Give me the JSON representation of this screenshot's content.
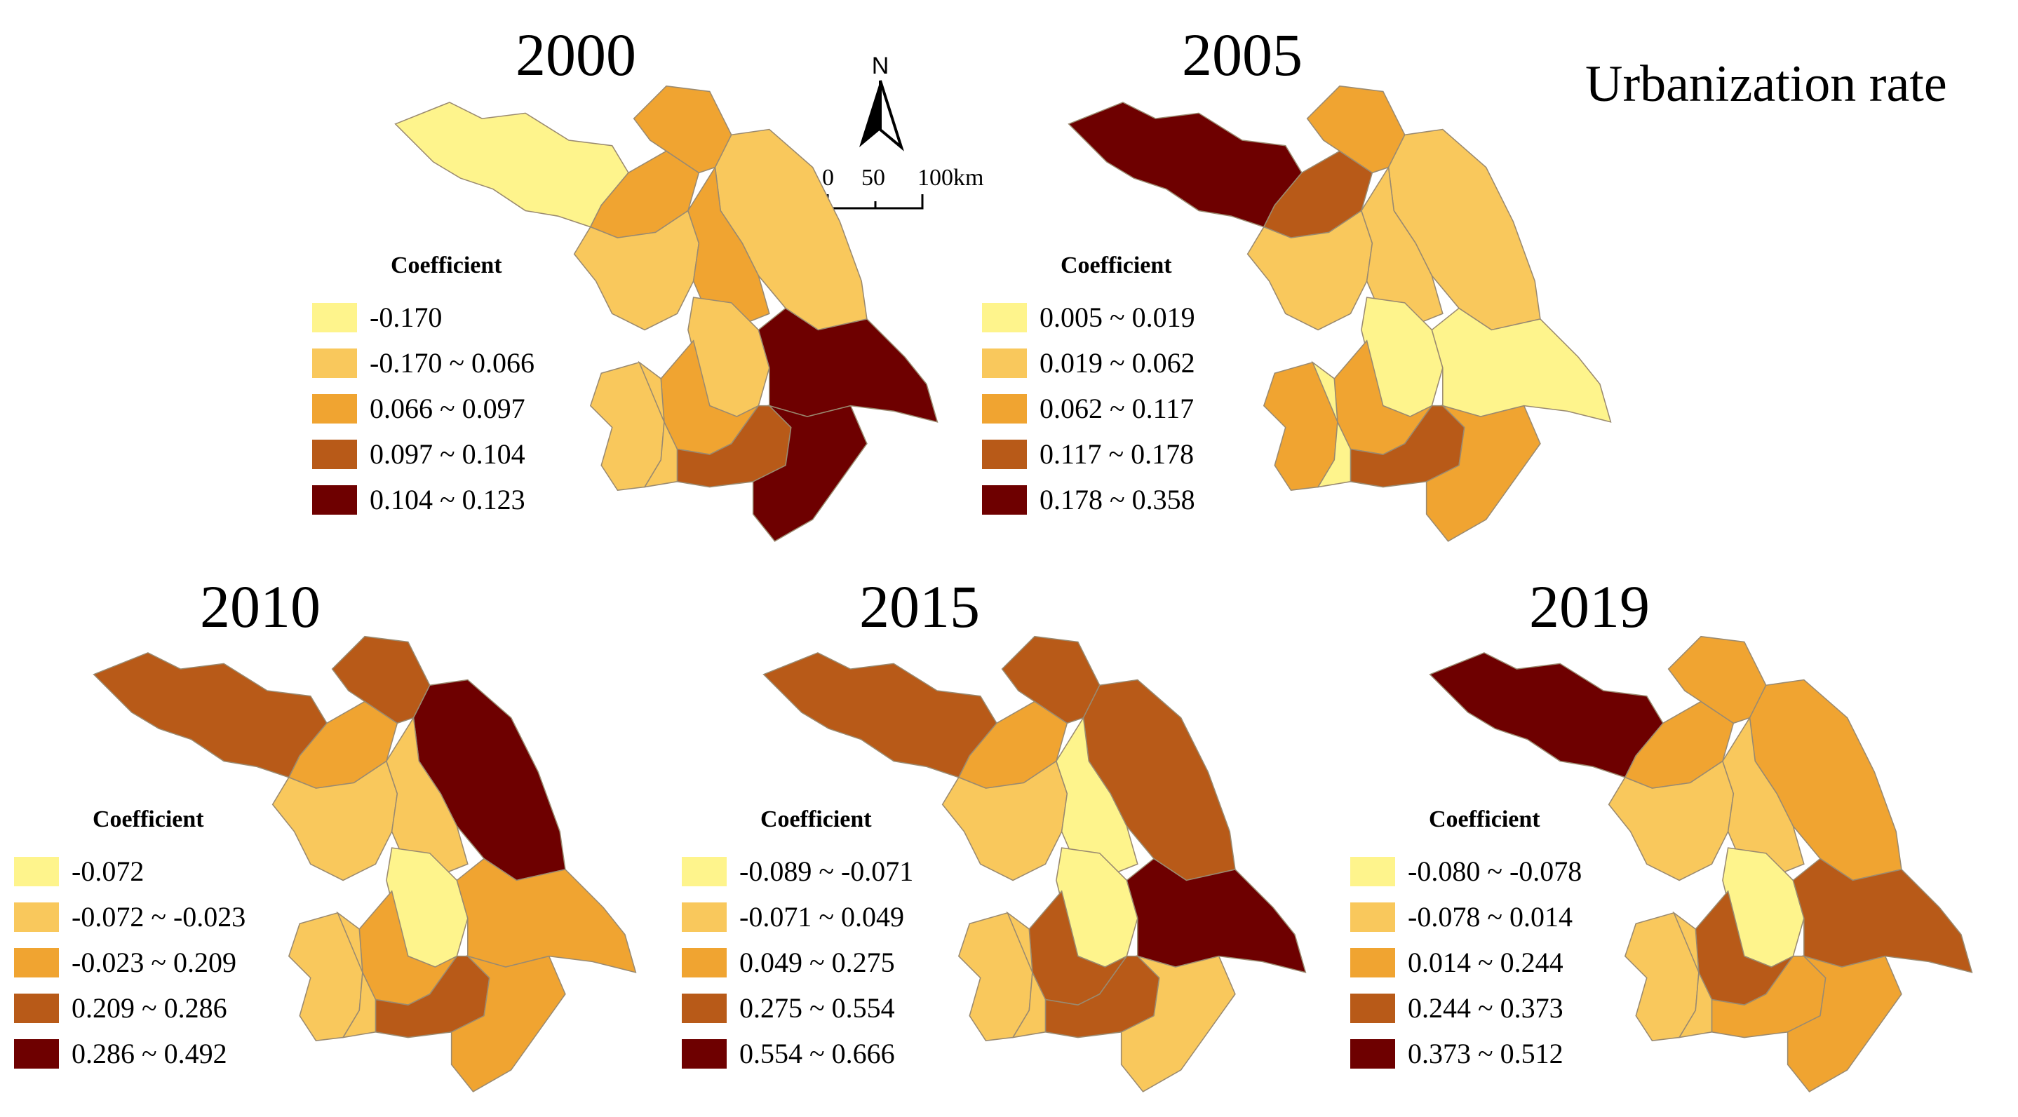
{
  "title": "Urbanization rate",
  "north_label": "N",
  "scale_labels": [
    "0",
    "50",
    "100km"
  ],
  "palette": [
    "#fef48c",
    "#f9c85c",
    "#f0a431",
    "#b85a18",
    "#6e0000"
  ],
  "panels": [
    {
      "year": "2000",
      "legend_title": "Coefficient",
      "classes": [
        "-0.170",
        "-0.170 ~ 0.066",
        "0.066 ~ 0.097",
        "0.097 ~ 0.104",
        "0.104 ~ 0.123"
      ],
      "regions": [
        0,
        2,
        2,
        1,
        1,
        2,
        1,
        1,
        2,
        4,
        3,
        4,
        1
      ]
    },
    {
      "year": "2005",
      "legend_title": "Coefficient",
      "classes": [
        "0.005 ~ 0.019",
        "0.019 ~ 0.062",
        "0.062 ~ 0.117",
        "0.117 ~ 0.178",
        "0.178 ~ 0.358"
      ],
      "regions": [
        4,
        3,
        2,
        1,
        1,
        1,
        2,
        0,
        2,
        0,
        3,
        2,
        0
      ]
    },
    {
      "year": "2010",
      "legend_title": "Coefficient",
      "classes": [
        "-0.072",
        "-0.072 ~ -0.023",
        "-0.023 ~ 0.209",
        "0.209 ~ 0.286",
        "0.286 ~ 0.492"
      ],
      "regions": [
        3,
        2,
        3,
        4,
        1,
        1,
        1,
        0,
        2,
        2,
        3,
        2,
        1
      ]
    },
    {
      "year": "2015",
      "legend_title": "Coefficient",
      "classes": [
        "-0.089 ~ -0.071",
        "-0.071 ~ 0.049",
        "0.049 ~ 0.275",
        "0.275 ~ 0.554",
        "0.554 ~ 0.666"
      ],
      "regions": [
        3,
        2,
        3,
        3,
        1,
        0,
        1,
        0,
        3,
        4,
        3,
        1,
        1
      ]
    },
    {
      "year": "2019",
      "legend_title": "Coefficient",
      "classes": [
        "-0.080 ~ -0.078",
        "-0.078 ~ 0.014",
        "0.014 ~ 0.244",
        "0.244 ~ 0.373",
        "0.373 ~ 0.512"
      ],
      "regions": [
        4,
        2,
        2,
        2,
        1,
        1,
        1,
        0,
        3,
        3,
        2,
        2,
        1
      ]
    }
  ]
}
